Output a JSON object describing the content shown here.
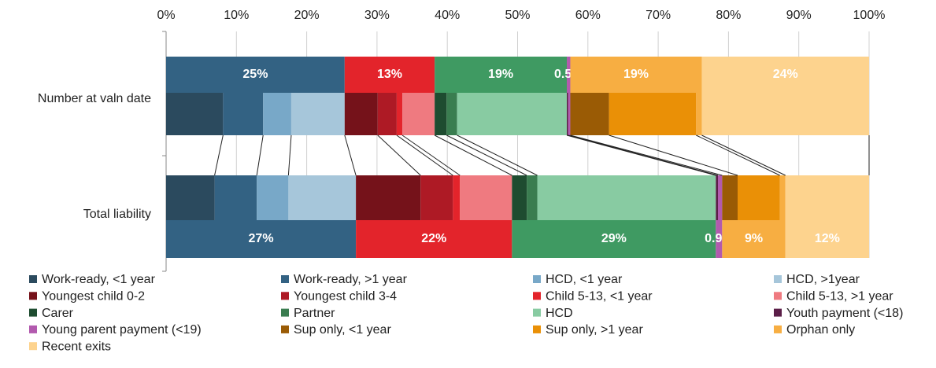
{
  "chart_data": {
    "type": "stacked-bar-h",
    "categories": [
      "Number at valn date",
      "Total liability"
    ],
    "xlim": [
      0,
      100
    ],
    "xticks": [
      {
        "value": 0,
        "label": "0%"
      },
      {
        "value": 10,
        "label": "10%"
      },
      {
        "value": 20,
        "label": "20%"
      },
      {
        "value": 30,
        "label": "30%"
      },
      {
        "value": 40,
        "label": "40%"
      },
      {
        "value": 50,
        "label": "50%"
      },
      {
        "value": 60,
        "label": "60%"
      },
      {
        "value": 70,
        "label": "70%"
      },
      {
        "value": 80,
        "label": "80%"
      },
      {
        "value": 90,
        "label": "90%"
      },
      {
        "value": 100,
        "label": "100%"
      }
    ],
    "grid": true,
    "series": [
      {
        "name": "Work-ready, <1 year",
        "color": "#2b4a5e",
        "values": [
          8.1,
          6.9
        ]
      },
      {
        "name": "Work-ready, >1 year",
        "color": "#336283",
        "values": [
          5.7,
          6.0
        ]
      },
      {
        "name": "HCD, <1 year",
        "color": "#78a8c8",
        "values": [
          4.0,
          4.5
        ]
      },
      {
        "name": "HCD, >1year",
        "color": "#a6c6da",
        "values": [
          7.6,
          9.6
        ]
      },
      {
        "name": "Youngest child 0-2",
        "color": "#75121a",
        "values": [
          4.7,
          9.2
        ]
      },
      {
        "name": "Youngest child 3-4",
        "color": "#ae1a25",
        "values": [
          2.7,
          4.6
        ]
      },
      {
        "name": "Child 5-13, <1 year",
        "color": "#e3242b",
        "values": [
          0.8,
          1.0
        ]
      },
      {
        "name": "Child 5-13, >1 year",
        "color": "#ef7a80",
        "values": [
          4.6,
          7.4
        ]
      },
      {
        "name": "Carer",
        "color": "#1e4c30",
        "values": [
          1.7,
          2.1
        ]
      },
      {
        "name": "Partner",
        "color": "#3a7d50",
        "values": [
          1.5,
          1.5
        ]
      },
      {
        "name": "HCD",
        "color": "#88cba2",
        "values": [
          15.6,
          25.4
        ]
      },
      {
        "name": "Youth payment (<18)",
        "color": "#5b1e48",
        "values": [
          0.2,
          0.3
        ]
      },
      {
        "name": "Young parent payment (<19)",
        "color": "#b25aae",
        "values": [
          0.3,
          0.6
        ]
      },
      {
        "name": "Sup only, <1 year",
        "color": "#9a5b05",
        "values": [
          5.5,
          2.2
        ]
      },
      {
        "name": "Sup only, >1 year",
        "color": "#ea9006",
        "values": [
          12.4,
          6.0
        ]
      },
      {
        "name": "Orphan only",
        "color": "#f7ae42",
        "values": [
          0.8,
          0.8
        ]
      },
      {
        "name": "Recent exits",
        "color": "#fdd38e",
        "values": [
          23.8,
          11.9
        ]
      }
    ],
    "summary_series": [
      {
        "color": "#336283",
        "values": [
          25.4,
          27.0
        ],
        "value_labels": [
          "25%",
          "27%"
        ]
      },
      {
        "color": "#e3242b",
        "values": [
          12.8,
          22.2
        ],
        "value_labels": [
          "13%",
          "22%"
        ]
      },
      {
        "color": "#3f9a62",
        "values": [
          18.8,
          29.0
        ],
        "value_labels": [
          "19%",
          "29%"
        ]
      },
      {
        "color": "#b25aae",
        "values": [
          0.5,
          0.9
        ],
        "value_labels": [
          "0.5%",
          "0.9%"
        ]
      },
      {
        "color": "#f7ae42",
        "values": [
          18.7,
          9.0
        ],
        "value_labels": [
          "19%",
          "9%"
        ]
      },
      {
        "color": "#fdd38e",
        "values": [
          23.8,
          11.9
        ],
        "value_labels": [
          "24%",
          "12%"
        ]
      }
    ]
  }
}
